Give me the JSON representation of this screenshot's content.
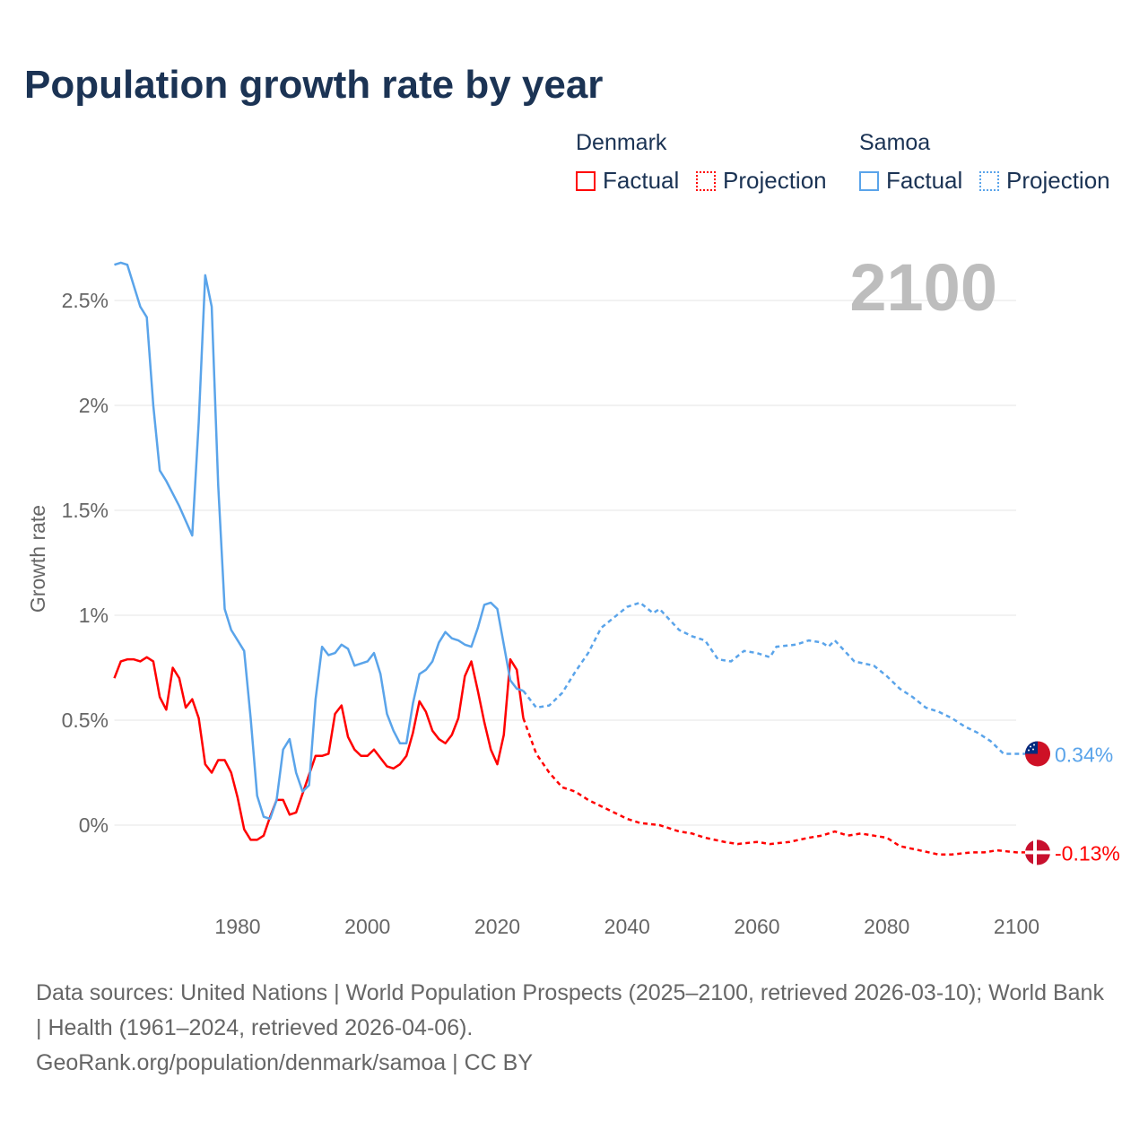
{
  "title": "Population growth rate by year",
  "legend": {
    "groups": [
      {
        "name": "Denmark",
        "color": "#ff0000",
        "items": [
          "Factual",
          "Projection"
        ]
      },
      {
        "name": "Samoa",
        "color": "#5aa4ea",
        "items": [
          "Factual",
          "Projection"
        ]
      }
    ]
  },
  "current_year": "2100",
  "footer": {
    "sources": "Data sources: United Nations | World Population Prospects (2025–2100, retrieved 2026-03-10); World Bank | Health (1961–2024, retrieved 2026-04-06).",
    "credit": "GeoRank.org/population/denmark/samoa | CC BY"
  },
  "chart_data": {
    "type": "line",
    "title": "Population growth rate by year",
    "ylabel": "Growth rate",
    "xlabel": "",
    "xlim": [
      1961,
      2100
    ],
    "ylim": [
      -0.35,
      2.75
    ],
    "grid": true,
    "x_ticks": [
      {
        "v": 1980,
        "label": "1980"
      },
      {
        "v": 2000,
        "label": "2000"
      },
      {
        "v": 2020,
        "label": "2020"
      },
      {
        "v": 2040,
        "label": "2040"
      },
      {
        "v": 2060,
        "label": "2060"
      },
      {
        "v": 2080,
        "label": "2080"
      },
      {
        "v": 2100,
        "label": "2100"
      }
    ],
    "y_ticks": [
      {
        "v": 0,
        "label": "0%"
      },
      {
        "v": 0.5,
        "label": "0.5%"
      },
      {
        "v": 1,
        "label": "1%"
      },
      {
        "v": 1.5,
        "label": "1.5%"
      },
      {
        "v": 2,
        "label": "2%"
      },
      {
        "v": 2.5,
        "label": "2.5%"
      }
    ],
    "series": [
      {
        "name": "Denmark",
        "color": "#ff0000",
        "end_label": "-0.13%",
        "factual": {
          "start": 1961,
          "values": [
            0.7,
            0.78,
            0.79,
            0.79,
            0.78,
            0.8,
            0.78,
            0.61,
            0.55,
            0.75,
            0.7,
            0.56,
            0.6,
            0.51,
            0.29,
            0.25,
            0.31,
            0.31,
            0.25,
            0.13,
            -0.02,
            -0.07,
            -0.07,
            -0.05,
            0.04,
            0.12,
            0.12,
            0.05,
            0.06,
            0.15,
            0.24,
            0.33,
            0.33,
            0.34,
            0.53,
            0.57,
            0.42,
            0.36,
            0.33,
            0.33,
            0.36,
            0.32,
            0.28,
            0.27,
            0.29,
            0.33,
            0.44,
            0.59,
            0.54,
            0.45,
            0.41,
            0.39,
            0.43,
            0.51,
            0.71,
            0.78,
            0.64,
            0.49,
            0.36,
            0.29,
            0.43,
            0.79,
            0.74,
            0.51
          ]
        },
        "projection": [
          [
            2024,
            0.51
          ],
          [
            2026,
            0.34
          ],
          [
            2028,
            0.25
          ],
          [
            2030,
            0.18
          ],
          [
            2032,
            0.16
          ],
          [
            2034,
            0.12
          ],
          [
            2036,
            0.09
          ],
          [
            2038,
            0.06
          ],
          [
            2040,
            0.03
          ],
          [
            2042,
            0.01
          ],
          [
            2045,
            0.0
          ],
          [
            2048,
            -0.03
          ],
          [
            2050,
            -0.04
          ],
          [
            2052,
            -0.06
          ],
          [
            2055,
            -0.08
          ],
          [
            2057,
            -0.09
          ],
          [
            2060,
            -0.08
          ],
          [
            2062,
            -0.09
          ],
          [
            2065,
            -0.08
          ],
          [
            2068,
            -0.06
          ],
          [
            2070,
            -0.05
          ],
          [
            2072,
            -0.03
          ],
          [
            2074,
            -0.05
          ],
          [
            2076,
            -0.04
          ],
          [
            2078,
            -0.05
          ],
          [
            2080,
            -0.06
          ],
          [
            2082,
            -0.1
          ],
          [
            2085,
            -0.12
          ],
          [
            2088,
            -0.14
          ],
          [
            2090,
            -0.14
          ],
          [
            2093,
            -0.13
          ],
          [
            2095,
            -0.13
          ],
          [
            2097,
            -0.12
          ],
          [
            2100,
            -0.13
          ]
        ]
      },
      {
        "name": "Samoa",
        "color": "#5aa4ea",
        "end_label": "0.34%",
        "factual": {
          "start": 1961,
          "values": [
            2.67,
            2.68,
            2.67,
            2.57,
            2.47,
            2.42,
            2.0,
            1.69,
            1.64,
            1.58,
            1.52,
            1.45,
            1.38,
            1.92,
            2.62,
            2.47,
            1.62,
            1.03,
            0.93,
            0.88,
            0.83,
            0.51,
            0.14,
            0.04,
            0.03,
            0.12,
            0.36,
            0.41,
            0.25,
            0.16,
            0.19,
            0.6,
            0.85,
            0.81,
            0.82,
            0.86,
            0.84,
            0.76,
            0.77,
            0.78,
            0.82,
            0.72,
            0.53,
            0.45,
            0.39,
            0.39,
            0.58,
            0.72,
            0.74,
            0.78,
            0.87,
            0.92,
            0.89,
            0.88,
            0.86,
            0.85,
            0.94,
            1.05,
            1.06,
            1.03,
            0.86,
            0.69,
            0.65,
            0.64
          ]
        },
        "projection": [
          [
            2024,
            0.64
          ],
          [
            2026,
            0.56
          ],
          [
            2028,
            0.57
          ],
          [
            2030,
            0.63
          ],
          [
            2032,
            0.73
          ],
          [
            2034,
            0.82
          ],
          [
            2036,
            0.94
          ],
          [
            2038,
            0.99
          ],
          [
            2040,
            1.04
          ],
          [
            2042,
            1.06
          ],
          [
            2044,
            1.01
          ],
          [
            2045,
            1.03
          ],
          [
            2048,
            0.93
          ],
          [
            2050,
            0.9
          ],
          [
            2052,
            0.88
          ],
          [
            2054,
            0.79
          ],
          [
            2056,
            0.78
          ],
          [
            2058,
            0.83
          ],
          [
            2060,
            0.82
          ],
          [
            2062,
            0.8
          ],
          [
            2063,
            0.85
          ],
          [
            2066,
            0.86
          ],
          [
            2068,
            0.88
          ],
          [
            2070,
            0.87
          ],
          [
            2071,
            0.85
          ],
          [
            2072,
            0.88
          ],
          [
            2075,
            0.78
          ],
          [
            2078,
            0.76
          ],
          [
            2080,
            0.71
          ],
          [
            2082,
            0.65
          ],
          [
            2084,
            0.61
          ],
          [
            2086,
            0.56
          ],
          [
            2088,
            0.54
          ],
          [
            2090,
            0.51
          ],
          [
            2092,
            0.47
          ],
          [
            2094,
            0.44
          ],
          [
            2096,
            0.4
          ],
          [
            2098,
            0.34
          ],
          [
            2100,
            0.34
          ]
        ]
      }
    ]
  }
}
